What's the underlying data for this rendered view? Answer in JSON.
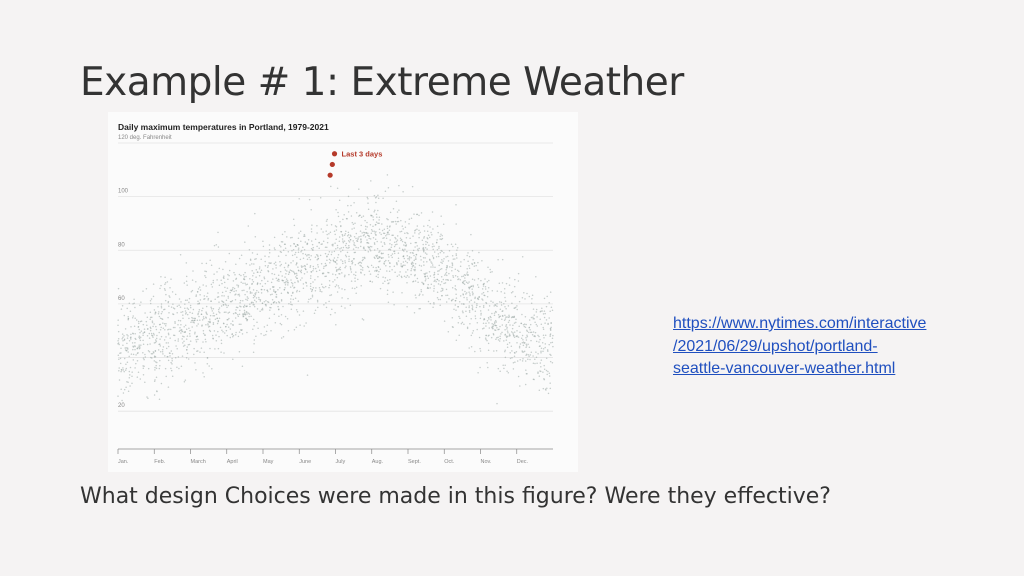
{
  "slide": {
    "title": "Example # 1: Extreme Weather",
    "question": "What design Choices were made in this figure? Were they effective?",
    "link_lines": [
      "https://www.nytimes.com/interactive",
      "/2021/06/29/upshot/portland-",
      "seattle-vancouver-weather.html"
    ]
  },
  "chart_data": {
    "type": "scatter",
    "title": "Daily maximum temperatures in Portland, 1979-2021",
    "ylabel": "",
    "y_unit_label": "120 deg. Fahrenheit",
    "y_ticks": [
      120,
      100,
      80,
      60,
      40,
      20
    ],
    "y_tick_labels": [
      "120 deg. Fahrenheit",
      "100",
      "80",
      "60",
      "",
      "20"
    ],
    "x_categories": [
      "Jan.",
      "Feb.",
      "March",
      "April",
      "May",
      "June",
      "July",
      "Aug.",
      "Sept.",
      "Oct.",
      "Nov.",
      "Dec."
    ],
    "ylim": [
      10,
      120
    ],
    "grid": true,
    "series": [
      {
        "name": "",
        "color": "#9aa7a4",
        "description_values": "daily max temps 1979-2021",
        "monthly_mean_max": [
          46,
          51,
          57,
          62,
          69,
          75,
          82,
          82,
          76,
          64,
          53,
          46
        ],
        "spread": 9
      },
      {
        "name": "Last 3 days",
        "color": "#b53a2a",
        "x_day": [
          178,
          179,
          180
        ],
        "values": [
          108,
          112,
          116
        ]
      }
    ]
  }
}
